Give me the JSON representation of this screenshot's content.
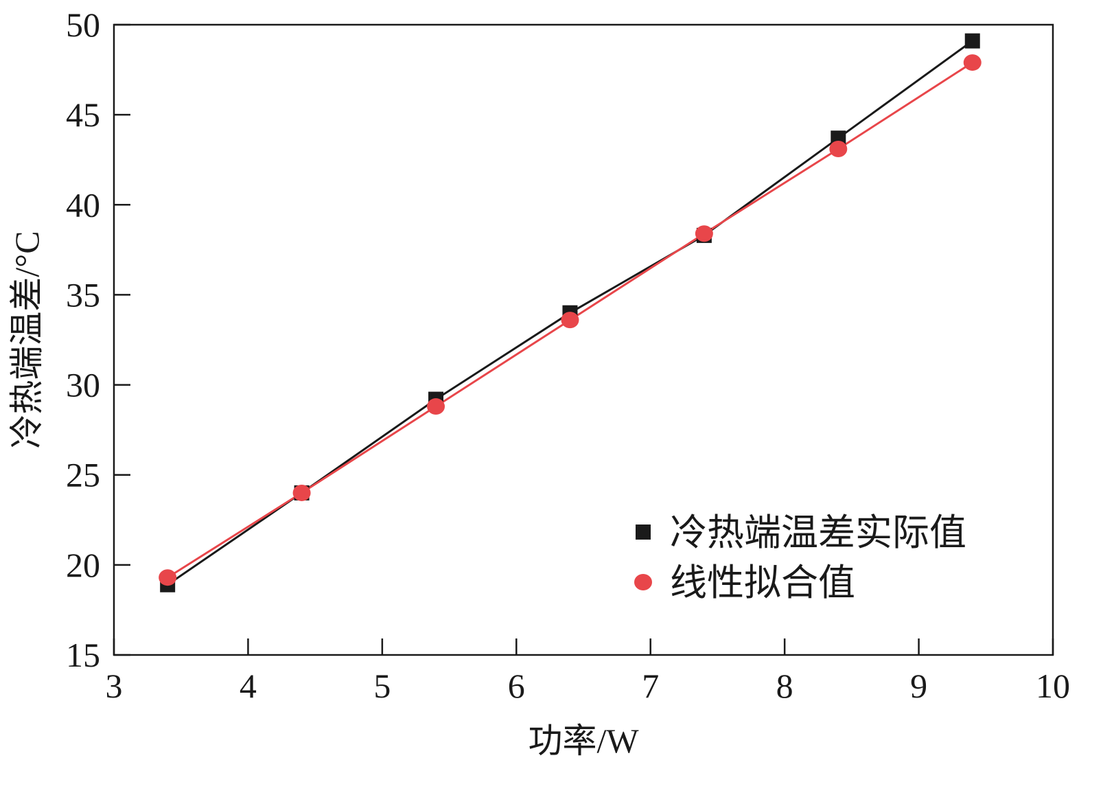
{
  "chart_data": {
    "type": "line",
    "title": "",
    "xlabel": "功率/W",
    "ylabel": "冷热端温差/°C",
    "xlim": [
      3,
      10
    ],
    "ylim": [
      15,
      50
    ],
    "x_ticks": [
      "3",
      "4",
      "5",
      "6",
      "7",
      "8",
      "9",
      "10"
    ],
    "y_ticks": [
      "15",
      "20",
      "25",
      "30",
      "35",
      "40",
      "45",
      "50"
    ],
    "grid": false,
    "legend_position": "bottom-right",
    "x": [
      3.4,
      4.4,
      5.4,
      6.4,
      7.4,
      8.4,
      9.4
    ],
    "series": [
      {
        "name": "冷热端温差实际值",
        "marker": "square",
        "color": "#1a1a1a",
        "values": [
          18.9,
          24.0,
          29.2,
          34.0,
          38.3,
          43.7,
          49.1
        ]
      },
      {
        "name": "线性拟合值",
        "marker": "circle",
        "color": "#e8464a",
        "values": [
          19.3,
          24.0,
          28.8,
          33.6,
          38.4,
          43.1,
          47.9
        ]
      }
    ]
  }
}
